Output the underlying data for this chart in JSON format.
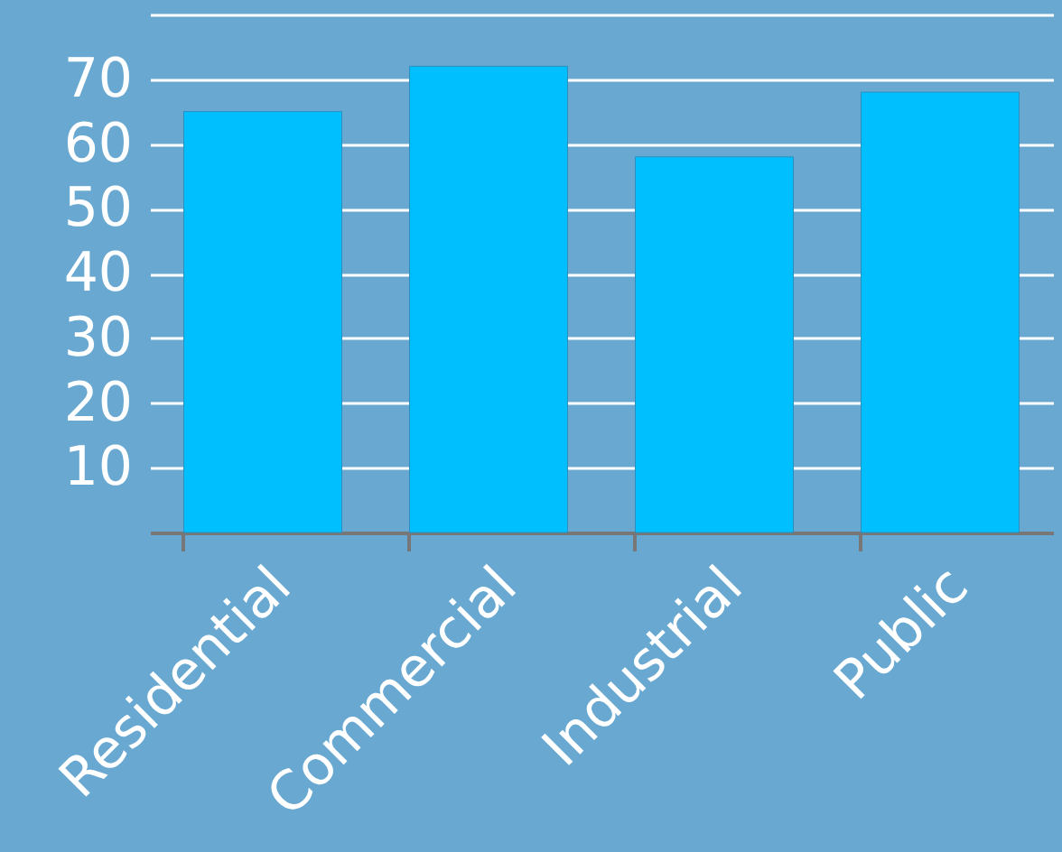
{
  "chart_data": {
    "type": "bar",
    "categories": [
      "Residential",
      "Commercial",
      "Industrial",
      "Public"
    ],
    "values": [
      65,
      72,
      58,
      68
    ],
    "color": "#00bfff",
    "ylim": [
      0,
      80
    ],
    "yticks": [
      10,
      20,
      30,
      40,
      50,
      60,
      70,
      {
        "value": 80,
        "label": null
      }
    ],
    "grid": "y"
  }
}
